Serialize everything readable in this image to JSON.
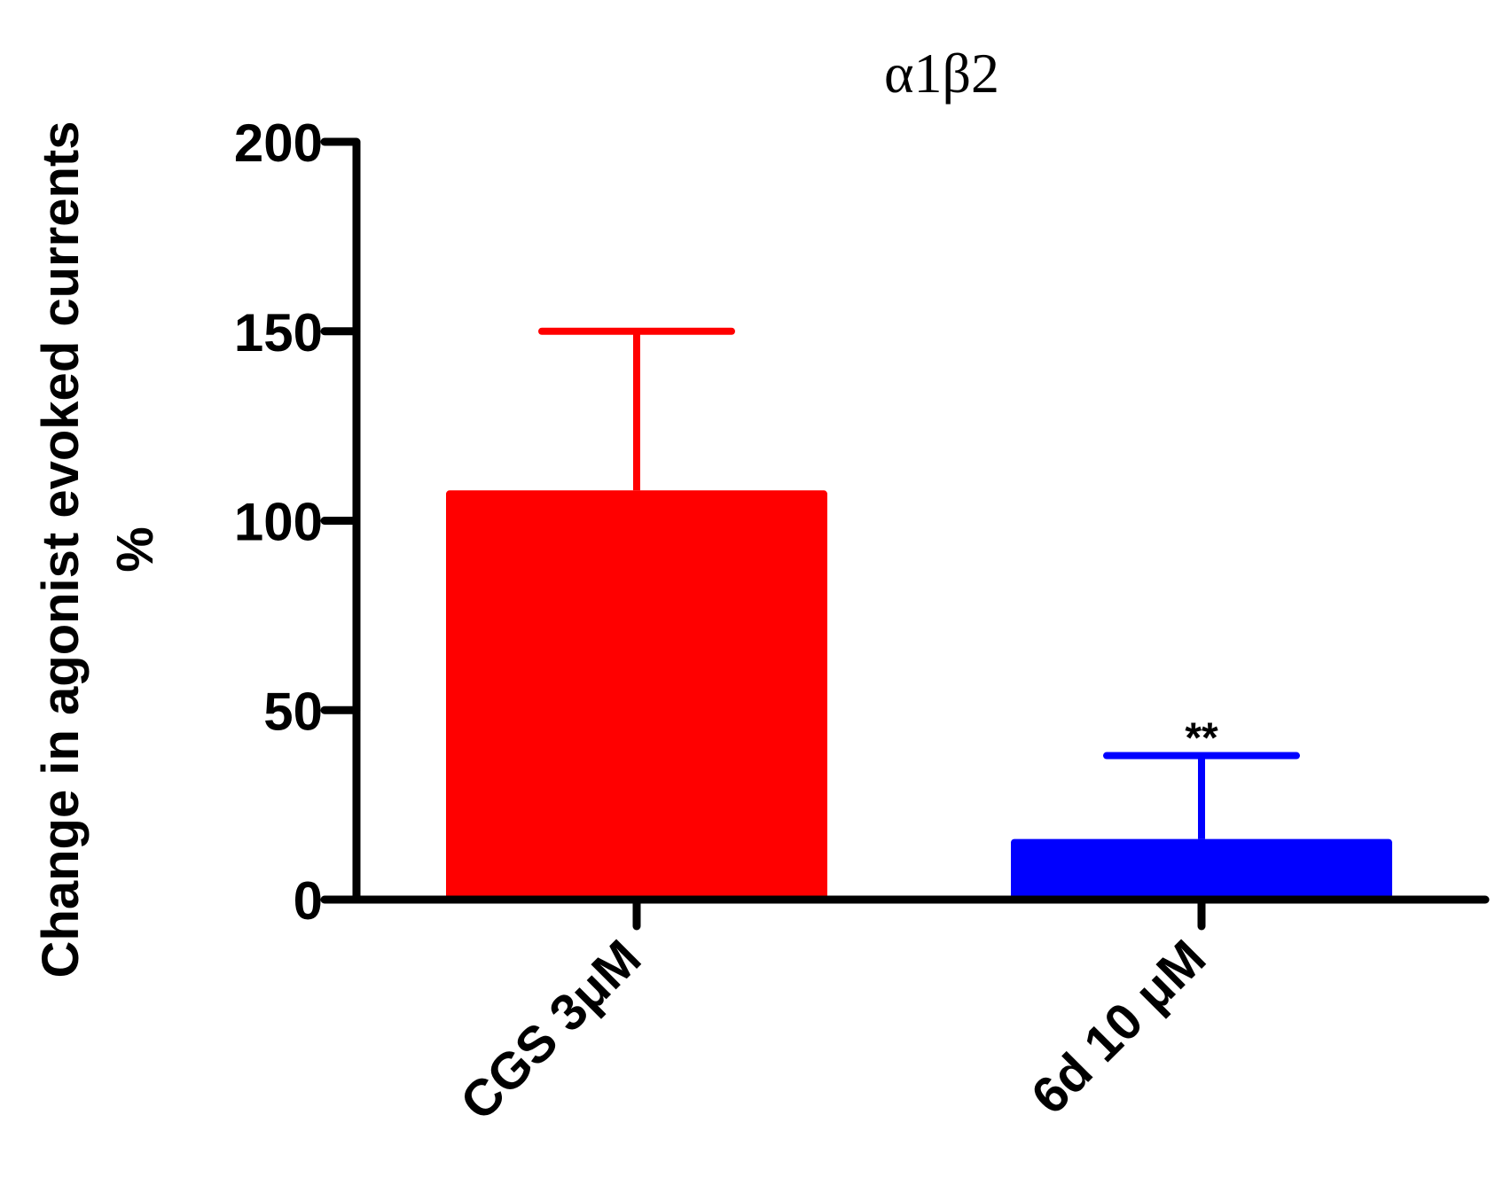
{
  "chart_data": {
    "type": "bar",
    "title": "α1β2",
    "ylabel_line1": "Change in agonist evoked currents",
    "ylabel_line2": "%",
    "xlabel": "",
    "ylim": [
      0,
      200
    ],
    "yticks": [
      0,
      50,
      100,
      150,
      200
    ],
    "categories": [
      "CGS 3μM",
      "6d 10 μM"
    ],
    "values": [
      108,
      16
    ],
    "error_upper": [
      150,
      38
    ],
    "colors": [
      "#ff0000",
      "#0000ff"
    ],
    "annotations": [
      {
        "category_index": 1,
        "text": "**"
      }
    ],
    "grid": false,
    "legend": "none"
  }
}
